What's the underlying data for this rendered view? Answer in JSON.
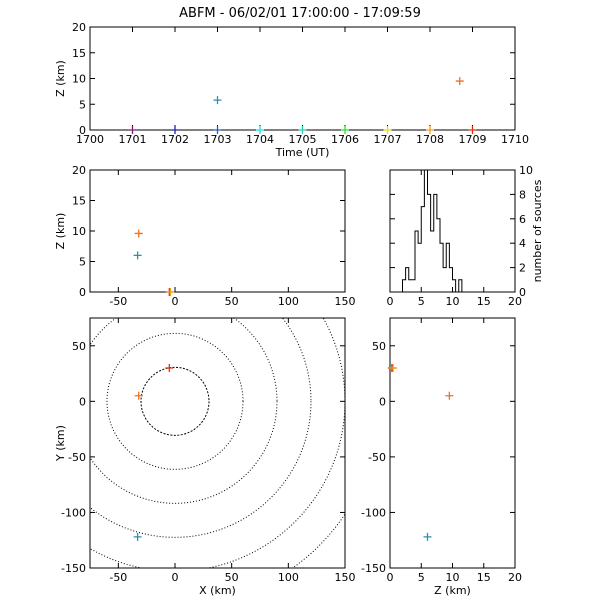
{
  "title": "ABFM - 06/02/01 17:00:00 - 17:09:59",
  "chart_data": [
    {
      "id": "time-height",
      "type": "scatter",
      "xlabel": "Time (UT)",
      "ylabel": "Z (km)",
      "xlim": [
        1700,
        1710
      ],
      "ylim": [
        0,
        20
      ],
      "xticks": [
        "1700",
        "1701",
        "1702",
        "1703",
        "1704",
        "1705",
        "1706",
        "1707",
        "1708",
        "1709",
        "1710"
      ],
      "yticks": [
        "0",
        "5",
        "10",
        "15",
        "20"
      ],
      "points": [
        {
          "x": 1701.0,
          "y": 0.0,
          "color": "#7a1a6a"
        },
        {
          "x": 1702.0,
          "y": 0.0,
          "color": "#2020b0"
        },
        {
          "x": 1703.0,
          "y": 0.0,
          "color": "#2060c0"
        },
        {
          "x": 1703.0,
          "y": 5.8,
          "color": "#2a8fb0"
        },
        {
          "x": 1704.0,
          "y": 0.0,
          "color": "#20e0e0"
        },
        {
          "x": 1705.0,
          "y": 0.0,
          "color": "#20d0b0"
        },
        {
          "x": 1706.0,
          "y": 0.0,
          "color": "#30e030"
        },
        {
          "x": 1707.0,
          "y": 0.0,
          "color": "#e0e020"
        },
        {
          "x": 1708.0,
          "y": 0.0,
          "color": "#f0a020"
        },
        {
          "x": 1708.7,
          "y": 9.5,
          "color": "#f07020"
        },
        {
          "x": 1709.0,
          "y": 0.0,
          "color": "#e03010"
        }
      ]
    },
    {
      "id": "x-height",
      "type": "scatter",
      "ylabel": "Z (km)",
      "xlim": [
        -75,
        150
      ],
      "ylim": [
        0,
        20
      ],
      "xticks": [
        "-50",
        "0",
        "50",
        "100",
        "150"
      ],
      "yticks": [
        "0",
        "5",
        "10",
        "15",
        "20"
      ],
      "points": [
        {
          "x": -32,
          "y": 9.6,
          "color": "#f07020"
        },
        {
          "x": -33,
          "y": 6.0,
          "color": "#2a8fb0"
        },
        {
          "x": -5,
          "y": 0.0,
          "color": "#e03010"
        },
        {
          "x": -4,
          "y": 0.0,
          "color": "#f0a020"
        }
      ]
    },
    {
      "id": "histogram",
      "type": "bar",
      "ylabel": "number of sources",
      "xlim": [
        0,
        20
      ],
      "ylim": [
        0,
        10
      ],
      "xticks": [
        "0",
        "5",
        "10",
        "15",
        "20"
      ],
      "yticks": [
        "0",
        "2",
        "4",
        "6",
        "8",
        "10"
      ],
      "bin_width": 0.5,
      "bins_start": [
        1.0,
        1.5,
        2.0,
        2.5,
        3.0,
        3.5,
        4.0,
        4.5,
        5.0,
        5.5,
        6.0,
        6.5,
        7.0,
        7.5,
        8.0,
        8.5,
        9.0,
        9.5,
        10.0,
        10.5,
        11.0,
        11.5,
        12.0,
        12.5
      ],
      "counts": [
        0,
        0,
        1,
        2,
        1,
        1,
        5,
        4,
        7,
        10,
        8,
        5,
        8,
        6,
        4,
        2,
        4,
        2,
        1,
        0,
        1,
        0,
        0,
        0
      ]
    },
    {
      "id": "plan-view",
      "type": "scatter",
      "xlabel": "X (km)",
      "ylabel": "Y (km)",
      "xlim": [
        -75,
        150
      ],
      "ylim": [
        -150,
        75
      ],
      "xticks": [
        "-50",
        "0",
        "50",
        "100",
        "150"
      ],
      "yticks": [
        "-150",
        "-100",
        "-50",
        "0",
        "50"
      ],
      "range_rings_km": [
        30,
        60,
        90,
        120,
        150,
        180
      ],
      "ring_center": [
        0,
        0
      ],
      "points": [
        {
          "x": -5,
          "y": 30,
          "color": "#e03010"
        },
        {
          "x": -32,
          "y": 5,
          "color": "#f07020"
        },
        {
          "x": -33,
          "y": -122,
          "color": "#2a8fb0"
        }
      ]
    },
    {
      "id": "height-y",
      "type": "scatter",
      "xlabel": "Z (km)",
      "xlim": [
        0,
        20
      ],
      "ylim": [
        -150,
        75
      ],
      "xticks": [
        "0",
        "5",
        "10",
        "15",
        "20"
      ],
      "yticks": [
        "-150",
        "-100",
        "-50",
        "0",
        "50"
      ],
      "points": [
        {
          "x": 0.3,
          "y": 30,
          "color": "#e03010"
        },
        {
          "x": 0.5,
          "y": 30,
          "color": "#f0a020"
        },
        {
          "x": 9.5,
          "y": 5,
          "color": "#f07020"
        },
        {
          "x": 6.0,
          "y": -122,
          "color": "#2a8fb0"
        }
      ]
    }
  ]
}
